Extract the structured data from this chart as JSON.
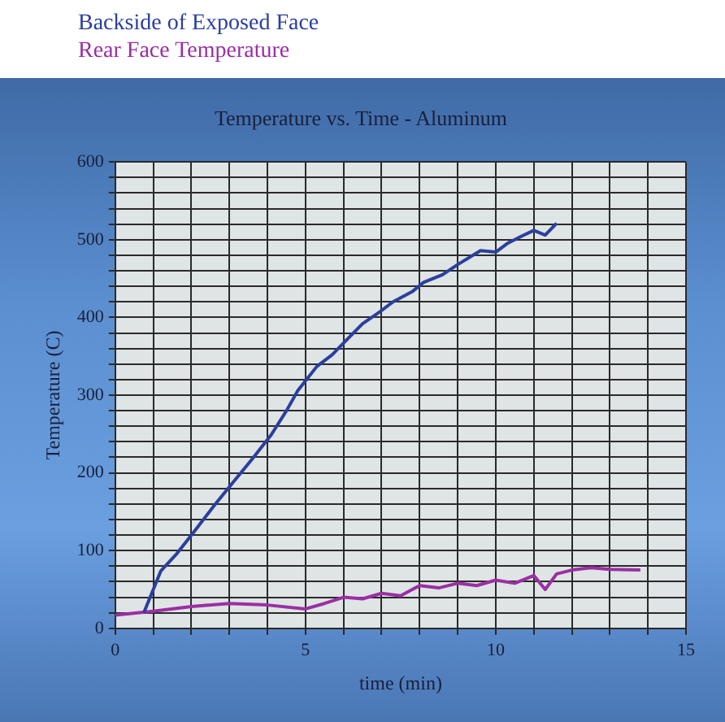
{
  "chart_data": {
    "type": "line",
    "title": "Temperature vs. Time - Aluminum",
    "xlabel": "time (min)",
    "ylabel": "Temperature (C)",
    "series": [
      {
        "name": "Backside of Exposed Face",
        "color": "#2b3f9e",
        "x": [
          0.75,
          1.2,
          1.6,
          2.1,
          2.6,
          3.1,
          3.6,
          4.1,
          4.5,
          4.8,
          5.3,
          5.7,
          6.1,
          6.5,
          6.95,
          7.3,
          7.8,
          8.1,
          8.6,
          9.0,
          9.6,
          10.0,
          10.3,
          10.7,
          11.0,
          11.3,
          11.6
        ],
        "values": [
          20,
          74,
          95,
          126,
          158,
          188,
          218,
          249,
          280,
          306,
          337,
          352,
          372,
          392,
          407,
          420,
          433,
          445,
          455,
          468,
          486,
          484,
          495,
          505,
          512,
          506,
          521
        ]
      },
      {
        "name": "Rear Face Temperature",
        "color": "#9b2fa3",
        "x": [
          0,
          1,
          2,
          3,
          4,
          5,
          5.5,
          6,
          6.5,
          7,
          7.5,
          8,
          8.5,
          9,
          9.5,
          10,
          10.5,
          11,
          11.3,
          11.6,
          12,
          12.5,
          13,
          13.8
        ],
        "values": [
          17,
          22,
          28,
          32,
          30,
          25,
          32,
          40,
          38,
          45,
          42,
          55,
          52,
          58,
          55,
          62,
          58,
          68,
          50,
          70,
          75,
          78,
          76,
          75
        ]
      }
    ],
    "xlim": [
      0,
      15
    ],
    "xticks": [
      0,
      {
        "value": 1,
        "label": null
      },
      {
        "value": 2,
        "label": null
      },
      {
        "value": 3,
        "label": null
      },
      {
        "value": 4,
        "label": null
      },
      5,
      {
        "value": 6,
        "label": null
      },
      {
        "value": 7,
        "label": null
      },
      {
        "value": 8,
        "label": null
      },
      {
        "value": 9,
        "label": null
      },
      10,
      {
        "value": 11,
        "label": null
      },
      {
        "value": 12,
        "label": null
      },
      {
        "value": 13,
        "label": null
      },
      {
        "value": 14,
        "label": null
      },
      15
    ],
    "ylim": [
      0,
      600
    ],
    "yticks": [
      0,
      {
        "value": 20,
        "label": null
      },
      {
        "value": 40,
        "label": null
      },
      {
        "value": 60,
        "label": null
      },
      {
        "value": 80,
        "label": null
      },
      100,
      {
        "value": 120,
        "label": null
      },
      {
        "value": 140,
        "label": null
      },
      {
        "value": 160,
        "label": null
      },
      {
        "value": 180,
        "label": null
      },
      200,
      {
        "value": 220,
        "label": null
      },
      {
        "value": 240,
        "label": null
      },
      {
        "value": 260,
        "label": null
      },
      {
        "value": 280,
        "label": null
      },
      300,
      {
        "value": 320,
        "label": null
      },
      {
        "value": 340,
        "label": null
      },
      {
        "value": 360,
        "label": null
      },
      {
        "value": 380,
        "label": null
      },
      400,
      {
        "value": 420,
        "label": null
      },
      {
        "value": 440,
        "label": null
      },
      {
        "value": 460,
        "label": null
      },
      {
        "value": 480,
        "label": null
      },
      500,
      {
        "value": 520,
        "label": null
      },
      {
        "value": 540,
        "label": null
      },
      {
        "value": 560,
        "label": null
      },
      {
        "value": 580,
        "label": null
      },
      600
    ],
    "grid": true,
    "legend": "top left",
    "marker": "none",
    "line_style": "solid"
  }
}
